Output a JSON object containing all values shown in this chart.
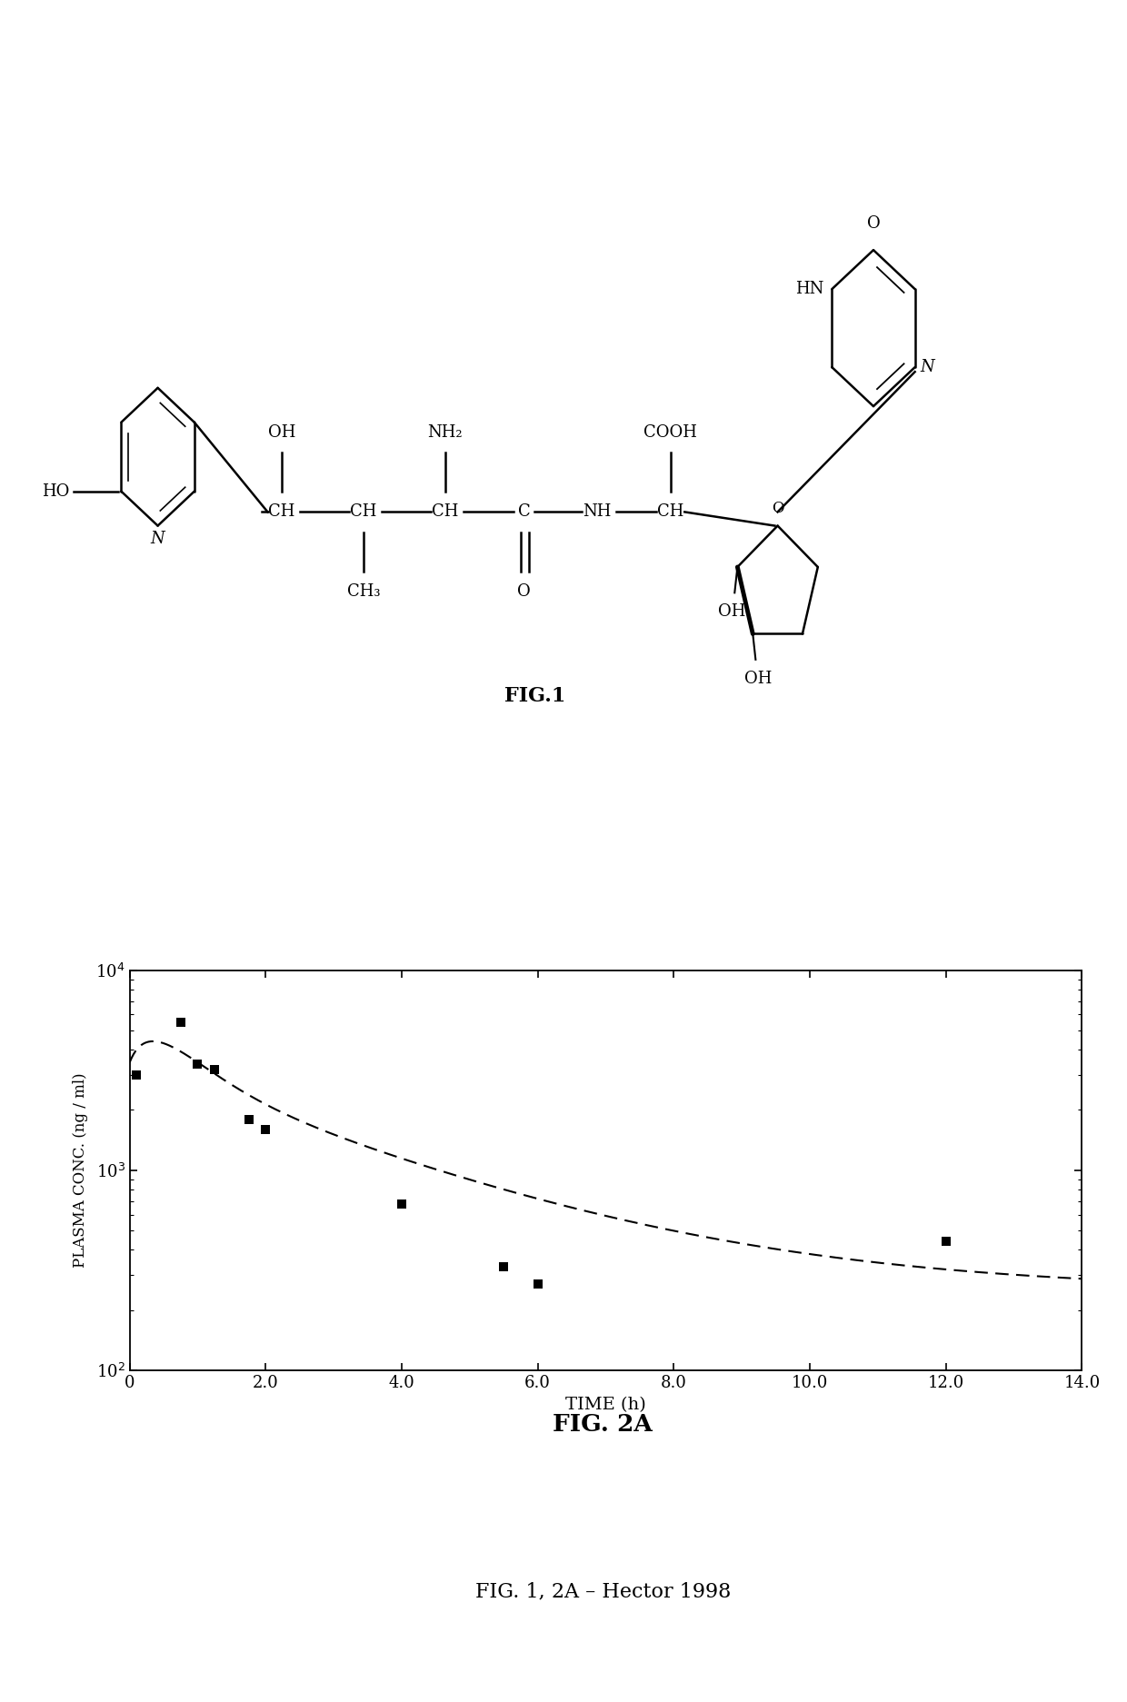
{
  "scatter_x": [
    0.1,
    0.75,
    1.0,
    1.25,
    1.75,
    2.0,
    4.0,
    5.5,
    6.0,
    12.0
  ],
  "scatter_y": [
    3000,
    5500,
    3400,
    3200,
    1800,
    1600,
    680,
    330,
    270,
    440
  ],
  "xlim": [
    0,
    14.0
  ],
  "ylim_log": [
    100,
    10000
  ],
  "xlabel": "TIME (h)",
  "ylabel": "PLASMA CONC. (ng / ml)",
  "fig1_label": "FIG.1",
  "fig2a_label": "FIG. 2A",
  "caption": "FIG. 1, 2A – Hector 1998",
  "xticks": [
    0.0,
    2.0,
    4.0,
    6.0,
    8.0,
    10.0,
    12.0,
    14.0
  ],
  "xtick_labels": [
    "0",
    "2.0",
    "4.0",
    "6.0",
    "8.0",
    "10.0",
    "12.0",
    "14.0"
  ],
  "background_color": "#ffffff"
}
